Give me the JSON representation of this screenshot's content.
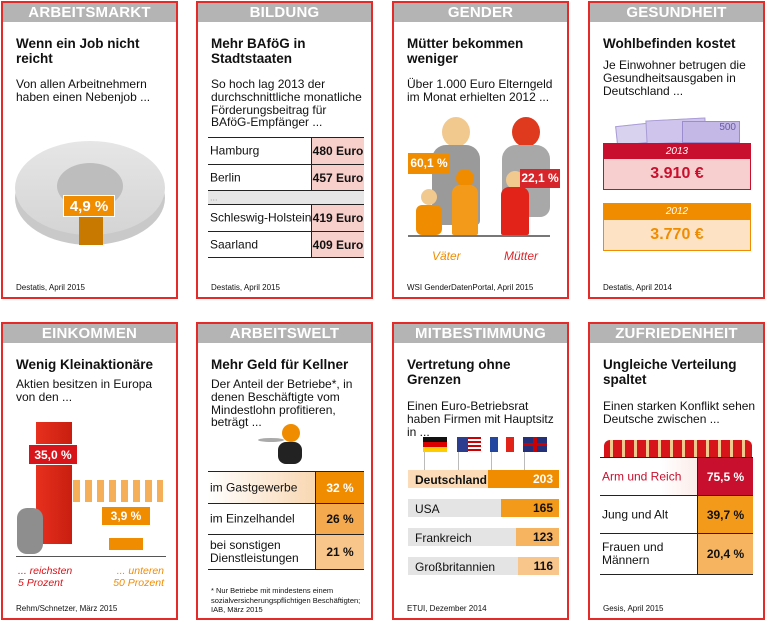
{
  "cards": [
    {
      "header": "ARBEITSMARKT",
      "title": "Wenn ein Job nicht reicht",
      "text": "Von allen Arbeitnehmern haben einen Nebenjob ...",
      "value": "4,9 %",
      "value_fraction": 0.049,
      "source": "Destatis, April 2015"
    },
    {
      "header": "BILDUNG",
      "title": "Mehr BAföG in Stadtstaaten",
      "text": "So hoch lag 2013 der durchschnittliche monatliche Förderungsbeitrag für BAföG-Empfänger ...",
      "rows": [
        {
          "label": "Hamburg",
          "value": "480 Euro"
        },
        {
          "label": "Berlin",
          "value": "457 Euro"
        },
        {
          "label": "..."
        },
        {
          "label": "Schleswig-Holstein",
          "value": "419 Euro"
        },
        {
          "label": "Saarland",
          "value": "409 Euro"
        }
      ],
      "source": "Destatis, April 2015"
    },
    {
      "header": "GENDER",
      "title": "Mütter bekommen weniger",
      "text": "Über 1.000 Euro Elterngeld im Monat erhielten 2012 ...",
      "father_value": "60,1 %",
      "mother_value": "22,1 %",
      "father_label": "Väter",
      "mother_label": "Mütter",
      "source": "WSI GenderDatenPortal, April 2015"
    },
    {
      "header": "GESUNDHEIT",
      "title": "Wohlbefinden kostet",
      "text": "Je Einwohner betrugen die Gesundheitsausgaben in Deutschland ...",
      "banknote": "500",
      "items": [
        {
          "year": "2013",
          "value": "3.910 €"
        },
        {
          "year": "2012",
          "value": "3.770 €"
        }
      ],
      "source": "Destatis, April 2014"
    },
    {
      "header": "EINKOMMEN",
      "title": "Wenig Kleinaktionäre",
      "text": "Aktien besitzen in Europa von den ...",
      "rich_value": "35,0 %",
      "poor_value": "3,9 %",
      "rich_label1": "... reichsten",
      "rich_label2": "5 Prozent",
      "poor_label1": "... unteren",
      "poor_label2": "50 Prozent",
      "source": "Rehm/Schnetzer, März 2015"
    },
    {
      "header": "ARBEITSWELT",
      "title": "Mehr Geld für Kellner",
      "text": "Der Anteil der Betriebe*, in denen Beschäftigte vom Mindestlohn profitieren, beträgt ...",
      "rows": [
        {
          "label": "im Gastgewerbe",
          "value": "32 %"
        },
        {
          "label": "im Einzelhandel",
          "value": "26 %"
        },
        {
          "label": "bei sonstigen Dienstleistungen",
          "value": "21 %"
        }
      ],
      "footnote": "* Nur Betriebe mit mindestens einem sozialversicherungspflichtigen Beschäftigten; IAB, März 2015"
    },
    {
      "header": "MITBESTIMMUNG",
      "title": "Vertretung ohne Grenzen",
      "text": "Einen Euro-Betriebsrat haben Firmen mit Hauptsitz in ...",
      "flags": [
        "germany-flag",
        "usa-flag",
        "france-flag",
        "uk-flag"
      ],
      "bars": [
        {
          "label": "Deutschland",
          "value": 203
        },
        {
          "label": "USA",
          "value": 165
        },
        {
          "label": "Frankreich",
          "value": 123
        },
        {
          "label": "Großbritannien",
          "value": 116
        }
      ],
      "source": "ETUI, Dezember 2014"
    },
    {
      "header": "ZUFRIEDENHEIT",
      "title": "Ungleiche Verteilung spaltet",
      "text": "Einen starken Konflikt sehen Deutsche zwischen ...",
      "rows": [
        {
          "label": "Arm und Reich",
          "value": "75,5 %"
        },
        {
          "label": "Jung und Alt",
          "value": "39,7 %"
        },
        {
          "label": "Frauen und Männern",
          "value": "20,4 %"
        }
      ],
      "source": "Gesis, April 2015"
    }
  ],
  "colors": {
    "border": "#e52a2a",
    "header": "#b4b4b4",
    "orange": "#f08c00",
    "red": "#c8102e"
  }
}
